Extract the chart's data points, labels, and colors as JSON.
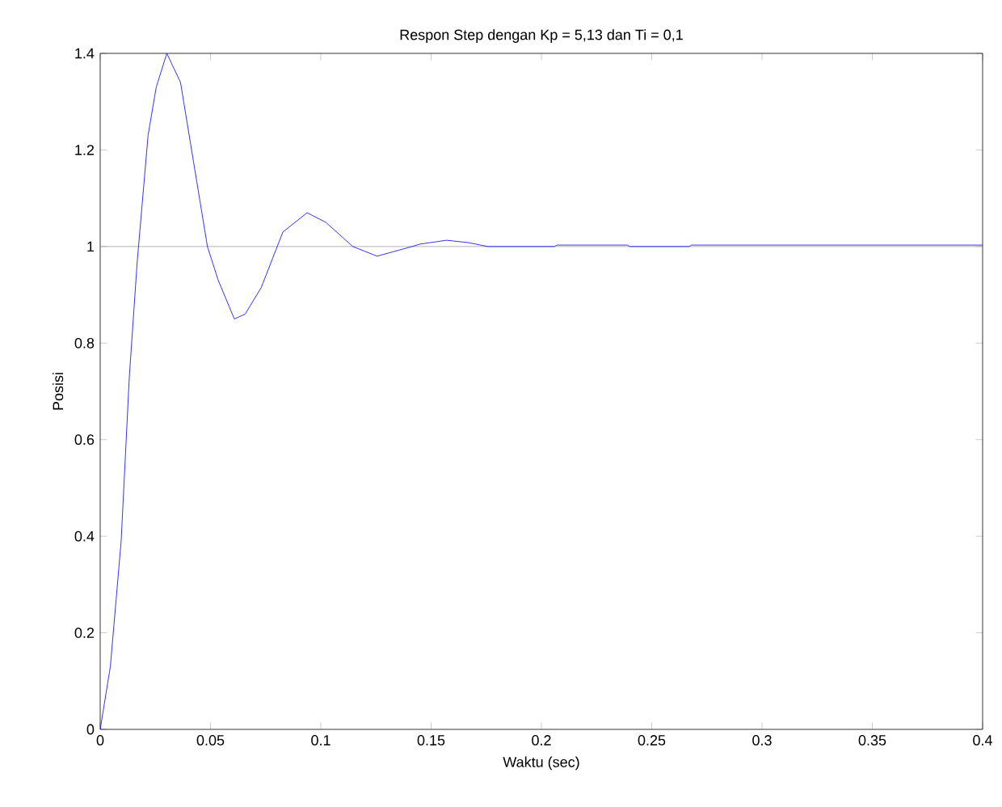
{
  "chart_data": {
    "type": "line",
    "title": "Respon Step dengan Kp = 5,13 dan Ti = 0,1",
    "xlabel": "Waktu (sec)",
    "ylabel": "Posisi",
    "x": [
      0,
      0.0046,
      0.0095,
      0.0132,
      0.0168,
      0.0217,
      0.0254,
      0.0302,
      0.0364,
      0.0425,
      0.0486,
      0.0535,
      0.0608,
      0.0657,
      0.073,
      0.0828,
      0.0938,
      0.1023,
      0.1145,
      0.1255,
      0.1414,
      0.145,
      0.157,
      0.167,
      0.1756,
      0.206,
      0.207,
      0.239,
      0.24,
      0.267,
      0.268,
      0.4
    ],
    "series": [
      {
        "color": "#0000ff",
        "values": [
          0,
          0.13,
          0.39,
          0.73,
          0.97,
          1.23,
          1.33,
          1.4,
          1.34,
          1.17,
          1.0,
          0.93,
          0.85,
          0.86,
          0.915,
          1.03,
          1.07,
          1.05,
          1.0,
          0.98,
          1.0,
          1.005,
          1.013,
          1.008,
          1.0,
          1.0,
          1.003,
          1.003,
          1.0,
          1.0,
          1.003,
          1.003
        ]
      }
    ],
    "xlim": [
      0,
      0.4
    ],
    "ylim": [
      0,
      1.4
    ],
    "xticks": [
      0,
      0.05,
      0.1,
      0.15,
      0.2,
      0.25,
      0.3,
      0.35,
      0.4
    ],
    "yticks": [
      0,
      0.2,
      0.4,
      0.6,
      0.8,
      1,
      1.2,
      1.4
    ],
    "ref_lines": [
      {
        "axis": "y",
        "value": 1,
        "color": "#a0a0a0"
      }
    ],
    "line_style": "solid",
    "marker": "none"
  }
}
